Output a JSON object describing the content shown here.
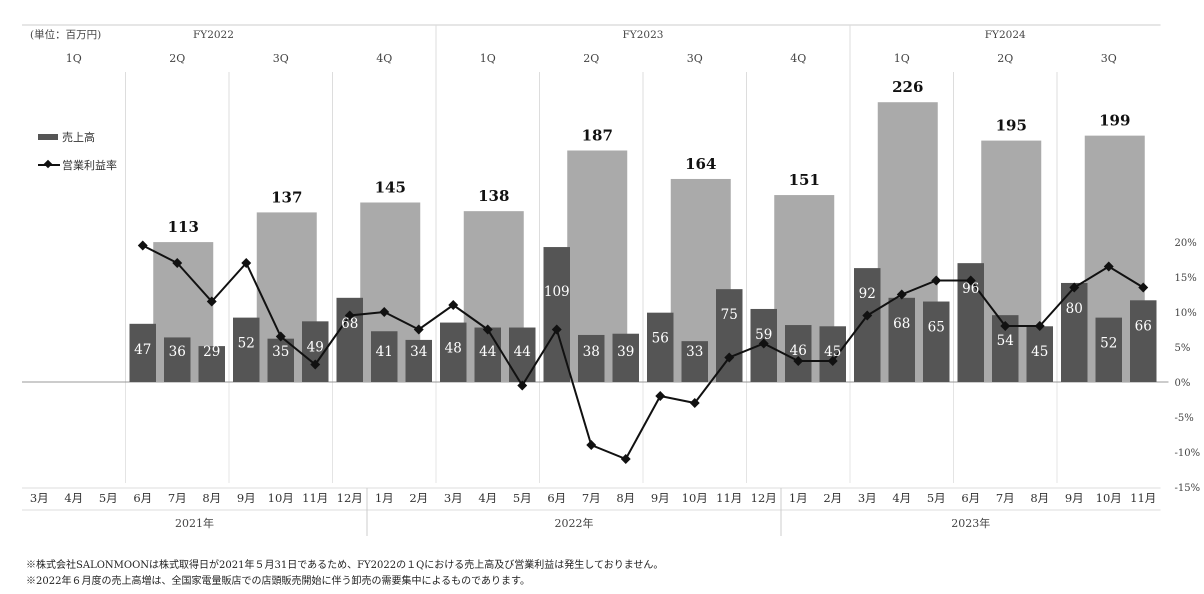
{
  "header": {
    "unit_label": "(単位：百万円)",
    "fiscal_years": [
      "FY2022",
      "FY2023",
      "FY2024"
    ]
  },
  "legend": {
    "sales_label": "売上高",
    "margin_label": "営業利益率"
  },
  "notes": [
    "※株式会社SALONMOONは株式取得日が2021年５月31日であるため、FY2022の１Qにおける売上高及び営業利益は発生しておりません。",
    "※2022年６月度の売上高増は、全国家電量販店での店頭販売開始に伴う卸売の需要集中によるものであります。"
  ],
  "chart_data": {
    "type": "bar",
    "quarters": [
      "1Q",
      "2Q",
      "3Q",
      "4Q",
      "1Q",
      "2Q",
      "3Q",
      "4Q",
      "1Q",
      "2Q",
      "3Q"
    ],
    "quarterly_sales": [
      null,
      113,
      137,
      145,
      138,
      187,
      164,
      151,
      226,
      195,
      199
    ],
    "months": [
      "3月",
      "4月",
      "5月",
      "6月",
      "7月",
      "8月",
      "9月",
      "10月",
      "11月",
      "12月",
      "1月",
      "2月",
      "3月",
      "4月",
      "5月",
      "6月",
      "7月",
      "8月",
      "9月",
      "10月",
      "11月",
      "12月",
      "1月",
      "2月",
      "3月",
      "4月",
      "5月",
      "6月",
      "7月",
      "8月",
      "9月",
      "10月",
      "11月"
    ],
    "calendar_years": [
      {
        "label": "2021年",
        "start": 0,
        "end": 9
      },
      {
        "label": "2022年",
        "start": 10,
        "end": 21
      },
      {
        "label": "2023年",
        "start": 22,
        "end": 32
      }
    ],
    "fiscal_year_groups": [
      {
        "label": "FY2022",
        "start_q": 0,
        "end_q": 3
      },
      {
        "label": "FY2023",
        "start_q": 4,
        "end_q": 7
      },
      {
        "label": "FY2024",
        "start_q": 8,
        "end_q": 10
      }
    ],
    "series": [
      {
        "name": "売上高",
        "values": [
          null,
          null,
          null,
          47,
          36,
          29,
          52,
          35,
          49,
          68,
          41,
          34,
          48,
          44,
          44,
          109,
          38,
          39,
          56,
          33,
          75,
          59,
          46,
          45,
          92,
          68,
          65,
          96,
          54,
          45,
          80,
          52,
          66
        ]
      },
      {
        "name": "営業利益率",
        "values": [
          null,
          null,
          null,
          19.5,
          17,
          11.5,
          17,
          6.5,
          2.5,
          9.5,
          10,
          7.5,
          11,
          7.5,
          -0.5,
          7.5,
          -9,
          -11,
          -2,
          -3,
          3.5,
          5.5,
          3,
          3,
          9.5,
          12.5,
          14.5,
          14.5,
          8,
          8,
          13.5,
          16.5,
          13.5
        ]
      }
    ],
    "y_axis_right": {
      "ticks": [
        "20%",
        "15%",
        "10%",
        "5%",
        "0%",
        "-5%",
        "-10%",
        "-15%"
      ],
      "range": [
        -15,
        20
      ]
    },
    "colors": {
      "quarterly_bar": "#aaaaaa",
      "monthly_bar": "#555555",
      "margin_line": "#111111"
    }
  }
}
